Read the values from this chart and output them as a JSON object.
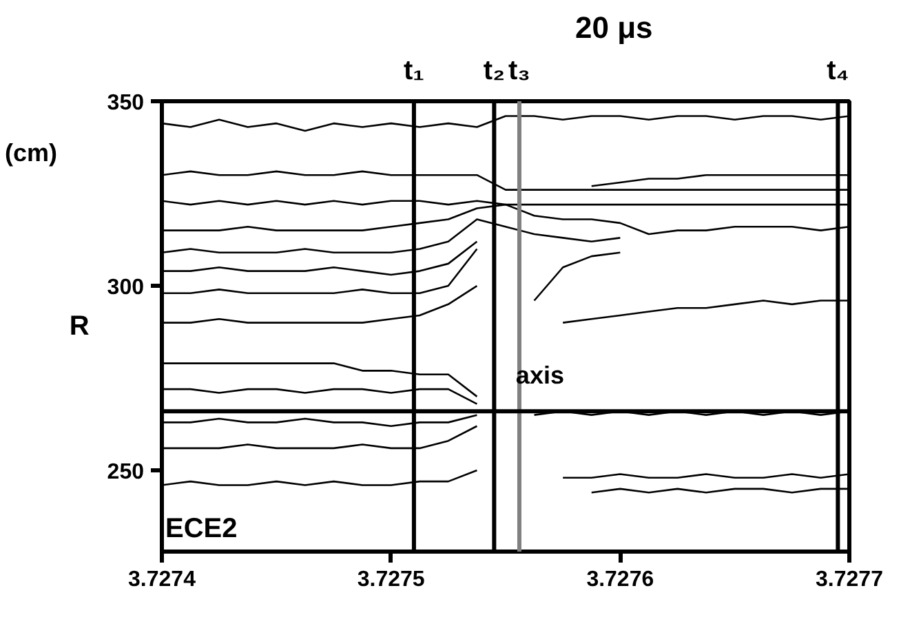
{
  "chart_data": {
    "type": "line",
    "ylabel": "R",
    "annotations": [
      "20 μs",
      "(cm)",
      "ECE2"
    ],
    "x": [
      3.7274,
      3.7274125,
      3.727425,
      3.7274375,
      3.72745,
      3.7274625,
      3.727475,
      3.7274875,
      3.7275,
      3.7275125,
      3.727525,
      3.7275375,
      3.72755,
      3.7275625,
      3.727575,
      3.7275875,
      3.7276,
      3.7276125,
      3.727625,
      3.7276375,
      3.72765,
      3.7276625,
      3.727675,
      3.7276875,
      3.7277
    ],
    "series": [
      {
        "color": "#000000",
        "values": [
          344,
          343,
          345,
          343,
          344,
          342,
          344,
          343,
          344,
          343,
          344,
          343,
          346,
          346,
          345,
          346,
          346,
          345,
          346,
          346,
          345,
          346,
          346,
          345,
          346
        ]
      },
      {
        "color": "#000000",
        "values": [
          330,
          331,
          330,
          330,
          331,
          330,
          330,
          331,
          330,
          330,
          330,
          330,
          326,
          326,
          326,
          326,
          326,
          326,
          326,
          326,
          326,
          326,
          326,
          326,
          326
        ]
      },
      {
        "color": "#000000",
        "values": [
          323,
          322,
          323,
          322,
          323,
          322,
          323,
          322,
          323,
          323,
          322,
          323,
          322,
          322,
          322,
          322,
          322,
          322,
          322,
          322,
          322,
          322,
          322,
          322,
          322
        ]
      },
      {
        "color": "#000000",
        "values": [
          null,
          null,
          null,
          null,
          null,
          null,
          null,
          null,
          null,
          null,
          null,
          null,
          null,
          null,
          null,
          327,
          328,
          329,
          329,
          330,
          330,
          330,
          330,
          330,
          330
        ]
      },
      {
        "color": "#000000",
        "values": [
          315,
          315,
          315,
          316,
          315,
          315,
          315,
          315,
          316,
          317,
          318,
          321,
          322,
          319,
          318,
          318,
          317,
          314,
          315,
          315,
          316,
          316,
          316,
          315,
          316
        ]
      },
      {
        "color": "#000000",
        "values": [
          309,
          310,
          309,
          309,
          309,
          310,
          309,
          309,
          309,
          310,
          312,
          318,
          316,
          314,
          313,
          312,
          313,
          null,
          null,
          null,
          null,
          null,
          null,
          null,
          null
        ]
      },
      {
        "color": "#000000",
        "values": [
          304,
          304,
          305,
          304,
          304,
          304,
          305,
          304,
          303,
          304,
          306,
          312,
          null,
          null,
          null,
          null,
          null,
          null,
          null,
          null,
          null,
          null,
          null,
          null,
          null
        ]
      },
      {
        "color": "#000000",
        "values": [
          298,
          298,
          299,
          298,
          298,
          298,
          298,
          299,
          298,
          298,
          300,
          310,
          null,
          296,
          305,
          308,
          309,
          null,
          null,
          null,
          null,
          null,
          null,
          null,
          null
        ]
      },
      {
        "color": "#000000",
        "values": [
          290,
          290,
          291,
          290,
          290,
          290,
          290,
          290,
          291,
          292,
          295,
          300,
          null,
          null,
          290,
          291,
          292,
          293,
          294,
          294,
          295,
          296,
          295,
          296,
          296
        ]
      },
      {
        "color": "#000000",
        "values": [
          279,
          279,
          279,
          279,
          279,
          279,
          279,
          277,
          277,
          276,
          276,
          270,
          null,
          null,
          null,
          null,
          null,
          null,
          null,
          null,
          null,
          null,
          null,
          null,
          null
        ]
      },
      {
        "color": "#000000",
        "values": [
          272,
          272,
          271,
          272,
          272,
          271,
          272,
          272,
          271,
          272,
          272,
          268,
          null,
          null,
          null,
          null,
          null,
          null,
          null,
          null,
          null,
          null,
          null,
          null,
          null
        ]
      },
      {
        "color": "#000000",
        "values": [
          263,
          263,
          264,
          263,
          263,
          264,
          263,
          263,
          262,
          263,
          263,
          265,
          null,
          265,
          266,
          265,
          266,
          265,
          266,
          265,
          266,
          265,
          266,
          265,
          266
        ]
      },
      {
        "color": "#000000",
        "values": [
          256,
          256,
          256,
          257,
          256,
          256,
          256,
          257,
          256,
          256,
          258,
          262,
          null,
          null,
          null,
          null,
          null,
          null,
          null,
          null,
          null,
          null,
          null,
          null,
          null
        ]
      },
      {
        "color": "#000000",
        "values": [
          246,
          247,
          246,
          246,
          247,
          246,
          247,
          246,
          246,
          247,
          247,
          250,
          null,
          null,
          248,
          248,
          249,
          248,
          248,
          249,
          248,
          248,
          249,
          248,
          249
        ]
      },
      {
        "color": "#000000",
        "values": [
          null,
          null,
          null,
          null,
          null,
          null,
          null,
          null,
          null,
          null,
          null,
          null,
          null,
          null,
          null,
          244,
          245,
          244,
          245,
          244,
          245,
          245,
          244,
          245,
          245
        ]
      }
    ],
    "ref_lines": [
      {
        "axis": "x",
        "value": 3.72751,
        "label": "t₁",
        "color": "#000000"
      },
      {
        "axis": "x",
        "value": 3.727545,
        "label": "t₂",
        "color": "#000000"
      },
      {
        "axis": "x",
        "value": 3.727556,
        "label": "t₃",
        "color": "#808080"
      },
      {
        "axis": "x",
        "value": 3.727695,
        "label": "t₄",
        "color": "#000000"
      },
      {
        "axis": "y",
        "value": 266,
        "label": "axis",
        "color": "#000000"
      }
    ],
    "xlim": [
      3.7274,
      3.7277
    ],
    "ylim": [
      228,
      350
    ],
    "xticks": [
      3.7274,
      3.7275,
      3.7276,
      3.7277
    ],
    "yticks": [
      250,
      300,
      350
    ],
    "grid": false,
    "marker": "none",
    "line_style": "solid"
  }
}
